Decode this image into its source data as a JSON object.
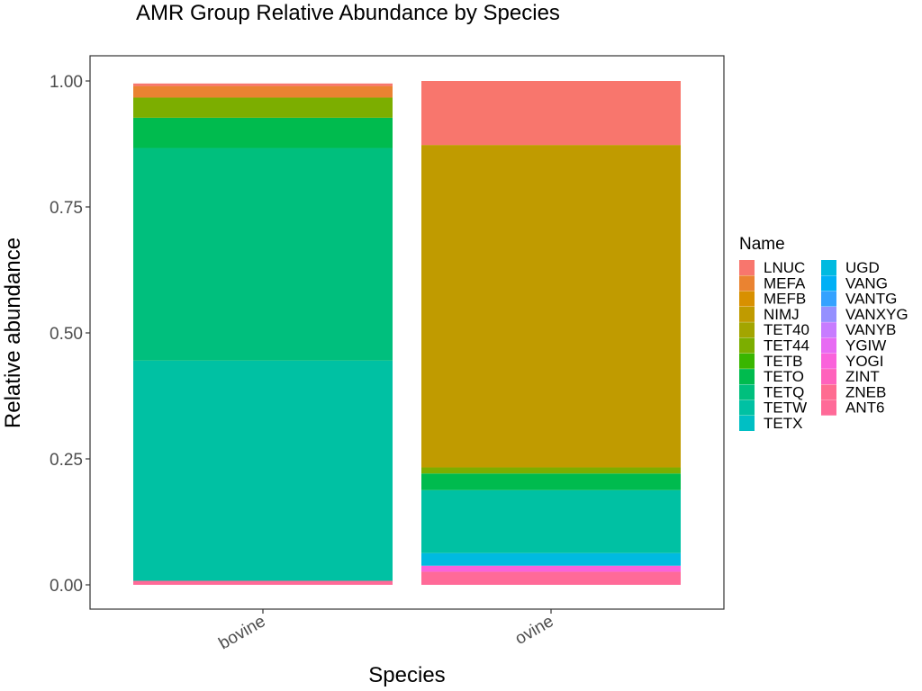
{
  "chart_data": {
    "type": "bar",
    "stacked": true,
    "title": "AMR Group Relative Abundance by Species",
    "xlabel": "Species",
    "ylabel": "Relative abundance",
    "categories": [
      "bovine",
      "ovine"
    ],
    "ylim": [
      0,
      1
    ],
    "yticks": [
      "0.00",
      "0.25",
      "0.50",
      "0.75",
      "1.00"
    ],
    "grid": false,
    "legend": {
      "title": "Name",
      "position": "right"
    },
    "series": [
      {
        "name": "LNUC",
        "color": "#F8766D",
        "values": [
          0.005,
          0.127
        ]
      },
      {
        "name": "MEFA",
        "color": "#EA8331",
        "values": [
          0.023,
          0.0
        ]
      },
      {
        "name": "MEFB",
        "color": "#D89000",
        "values": [
          0.0,
          0.0
        ]
      },
      {
        "name": "NIMJ",
        "color": "#C09B00",
        "values": [
          0.0,
          0.64
        ]
      },
      {
        "name": "TET40",
        "color": "#A3A500",
        "values": [
          0.0,
          0.0
        ]
      },
      {
        "name": "TET44",
        "color": "#7CAE00",
        "values": [
          0.04,
          0.012
        ]
      },
      {
        "name": "TETB",
        "color": "#39B600",
        "values": [
          0.0,
          0.0
        ]
      },
      {
        "name": "TETO",
        "color": "#00BB4E",
        "values": [
          0.06,
          0.033
        ]
      },
      {
        "name": "TETQ",
        "color": "#00BF7D",
        "values": [
          0.422,
          0.0
        ]
      },
      {
        "name": "TETW",
        "color": "#00C1A3",
        "values": [
          0.437,
          0.125
        ]
      },
      {
        "name": "TETX",
        "color": "#00BFC4",
        "values": [
          0.0,
          0.0
        ]
      },
      {
        "name": "UGD",
        "color": "#00BAE0",
        "values": [
          0.0,
          0.025
        ]
      },
      {
        "name": "VANG",
        "color": "#00B0F6",
        "values": [
          0.0,
          0.0
        ]
      },
      {
        "name": "VANTG",
        "color": "#35A2FF",
        "values": [
          0.0,
          0.0
        ]
      },
      {
        "name": "VANXYG",
        "color": "#9590FF",
        "values": [
          0.0,
          0.0
        ]
      },
      {
        "name": "VANYB",
        "color": "#C77CFF",
        "values": [
          0.0,
          0.0
        ]
      },
      {
        "name": "YGIW",
        "color": "#E76BF3",
        "values": [
          0.0,
          0.0
        ]
      },
      {
        "name": "YOGI",
        "color": "#FA62DB",
        "values": [
          0.0,
          0.012
        ]
      },
      {
        "name": "ZINT",
        "color": "#FF62BC",
        "values": [
          0.0,
          0.0
        ]
      },
      {
        "name": "ZNEB",
        "color": "#FF6C91",
        "values": [
          0.0,
          0.0
        ]
      },
      {
        "name": "ANT6",
        "color": "#FF6A98",
        "values": [
          0.008,
          0.026
        ]
      }
    ]
  }
}
